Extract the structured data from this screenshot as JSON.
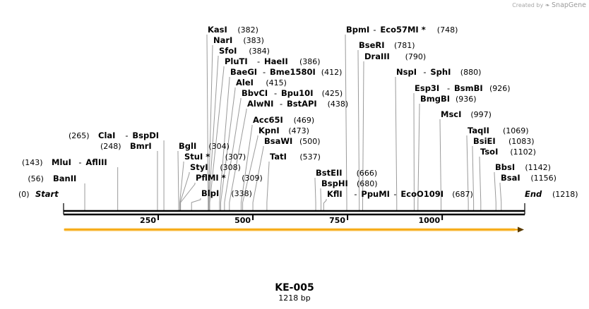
{
  "credit": {
    "prefix": "Created by",
    "logo_icon": "snapgene-logo-icon",
    "brand": "SnapGene"
  },
  "map": {
    "name": "KE-005",
    "length_label": "1218 bp",
    "total_bp": 1218,
    "scale_ticks": [
      {
        "bp": 250,
        "label": "250"
      },
      {
        "bp": 500,
        "label": "500"
      },
      {
        "bp": 750,
        "label": "750"
      },
      {
        "bp": 1000,
        "label": "1000"
      }
    ],
    "feature": {
      "type": "arrow",
      "direction": "forward",
      "start": 1,
      "end": 1218,
      "color": "#f6a300"
    },
    "ends": {
      "start_label": "Start",
      "start_pos": "(0)",
      "end_label": "End",
      "end_pos": "(1218)"
    },
    "sites": [
      {
        "names": [
          "BanII"
        ],
        "pos": "(56)",
        "bp": 56,
        "side": "left"
      },
      {
        "names": [
          "MluI",
          "AflIII"
        ],
        "pos": "(143)",
        "bp": 143,
        "side": "left"
      },
      {
        "names": [
          "BmrI"
        ],
        "pos": "(248)",
        "bp": 248,
        "side": "left"
      },
      {
        "names": [
          "ClaI",
          "BspDI"
        ],
        "pos": "(265)",
        "bp": 265,
        "side": "left"
      },
      {
        "names": [
          "BglI"
        ],
        "pos": "(304)",
        "bp": 304,
        "side": "right"
      },
      {
        "names": [
          "KasI"
        ],
        "pos": "(382)",
        "bp": 382,
        "side": "right"
      },
      {
        "names": [
          "NarI"
        ],
        "pos": "(383)",
        "bp": 383,
        "side": "right"
      },
      {
        "names": [
          "SfoI"
        ],
        "pos": "(384)",
        "bp": 384,
        "side": "right"
      },
      {
        "names": [
          "PluTI",
          "HaeII"
        ],
        "pos": "(386)",
        "bp": 386,
        "side": "right"
      },
      {
        "names": [
          "BaeGI",
          "Bme1580I"
        ],
        "pos": "(412)",
        "bp": 412,
        "side": "right"
      },
      {
        "names": [
          "AleI"
        ],
        "pos": "(415)",
        "bp": 415,
        "side": "right"
      },
      {
        "names": [
          "BbvCI",
          "Bpu10I"
        ],
        "pos": "(425)",
        "bp": 425,
        "side": "right"
      },
      {
        "names": [
          "AlwNI",
          "BstAPI"
        ],
        "pos": "(438)",
        "bp": 438,
        "side": "right"
      },
      {
        "names": [
          "Acc65I"
        ],
        "pos": "(469)",
        "bp": 469,
        "side": "right"
      },
      {
        "names": [
          "KpnI"
        ],
        "pos": "(473)",
        "bp": 473,
        "side": "right"
      },
      {
        "names": [
          "BsaWI"
        ],
        "pos": "(500)",
        "bp": 500,
        "side": "right"
      },
      {
        "names": [
          "TatI"
        ],
        "pos": "(537)",
        "bp": 537,
        "side": "right"
      },
      {
        "names": [
          "StuI *"
        ],
        "pos": "(307)",
        "bp": 307,
        "side": "right"
      },
      {
        "names": [
          "StyI"
        ],
        "pos": "(308)",
        "bp": 308,
        "side": "right"
      },
      {
        "names": [
          "PflMI *"
        ],
        "pos": "(309)",
        "bp": 309,
        "side": "right"
      },
      {
        "names": [
          "BlpI"
        ],
        "pos": "(338)",
        "bp": 338,
        "side": "right"
      },
      {
        "names": [
          "BpmI",
          "Eco57MI *"
        ],
        "pos": "(748)",
        "bp": 748,
        "side": "right"
      },
      {
        "names": [
          "BseRI"
        ],
        "pos": "(781)",
        "bp": 781,
        "side": "right"
      },
      {
        "names": [
          "DraIII"
        ],
        "pos": "(790)",
        "bp": 790,
        "side": "right"
      },
      {
        "names": [
          "BstEII"
        ],
        "pos": "(666)",
        "bp": 666,
        "side": "right"
      },
      {
        "names": [
          "BspHI"
        ],
        "pos": "(680)",
        "bp": 680,
        "side": "right"
      },
      {
        "names": [
          "KflI",
          "PpuMI",
          "EcoO109I"
        ],
        "pos": "(687)",
        "bp": 687,
        "side": "right"
      },
      {
        "names": [
          "NspI",
          "SphI"
        ],
        "pos": "(880)",
        "bp": 880,
        "side": "right"
      },
      {
        "names": [
          "Esp3I",
          "BsmBI"
        ],
        "pos": "(926)",
        "bp": 926,
        "side": "right"
      },
      {
        "names": [
          "BmgBI"
        ],
        "pos": "(936)",
        "bp": 936,
        "side": "right"
      },
      {
        "names": [
          "MscI"
        ],
        "pos": "(997)",
        "bp": 997,
        "side": "right"
      },
      {
        "names": [
          "TaqII"
        ],
        "pos": "(1069)",
        "bp": 1069,
        "side": "right"
      },
      {
        "names": [
          "BsiEI"
        ],
        "pos": "(1083)",
        "bp": 1083,
        "side": "right"
      },
      {
        "names": [
          "TsoI"
        ],
        "pos": "(1102)",
        "bp": 1102,
        "side": "right"
      },
      {
        "names": [
          "BbsI"
        ],
        "pos": "(1142)",
        "bp": 1142,
        "side": "right"
      },
      {
        "names": [
          "BsaI"
        ],
        "pos": "(1156)",
        "bp": 1156,
        "side": "right"
      }
    ]
  }
}
